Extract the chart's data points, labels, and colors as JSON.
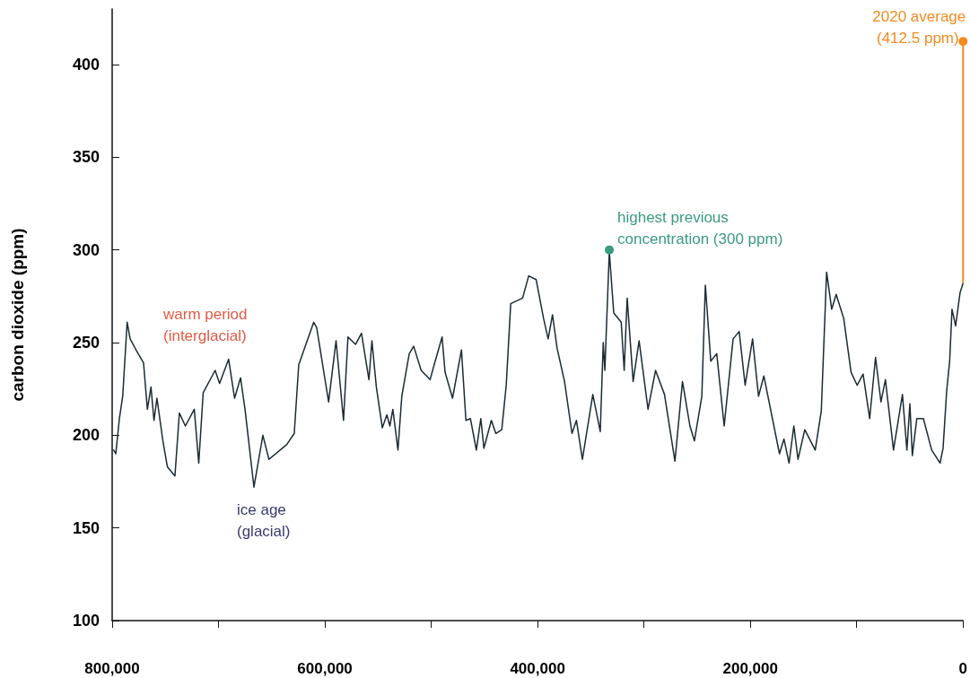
{
  "chart_data": {
    "type": "line",
    "ylabel": "carbon dioxide (ppm)",
    "xlim": [
      800000,
      0
    ],
    "ylim": [
      100,
      430
    ],
    "xticks": [
      {
        "value": 800000,
        "label": "800,000"
      },
      {
        "value": 700000,
        "label": null
      },
      {
        "value": 600000,
        "label": "600,000"
      },
      {
        "value": 500000,
        "label": null
      },
      {
        "value": 400000,
        "label": "400,000"
      },
      {
        "value": 300000,
        "label": null
      },
      {
        "value": 200000,
        "label": "200,000"
      },
      {
        "value": 100000,
        "label": null
      },
      {
        "value": 0,
        "label": "0"
      }
    ],
    "yticks": [
      100,
      150,
      200,
      250,
      300,
      350,
      400
    ],
    "grid": false,
    "marker": "none",
    "line_style": "solid",
    "annotations": [
      "warm period (interglacial)",
      "ice age (glacial)",
      {
        "text": "highest previous concentration (300 ppm)",
        "x": 332600,
        "y": 300
      },
      {
        "text": "2020 average (412.5 ppm)",
        "x": 0,
        "y": 412.5
      }
    ],
    "series": [
      {
        "color": "#1b2b33",
        "x": [
          798600,
          796600,
          793200,
          790100,
          785900,
          783100,
          777500,
          770500,
          766900,
          763500,
          760700,
          757900,
          752300,
          748100,
          741000,
          736800,
          731200,
          722800,
          718600,
          714400,
          703200,
          699000,
          690500,
          684900,
          679300,
          675100,
          666700,
          658300,
          652600,
          635800,
          628800,
          624600,
          610500,
          607700,
          596500,
          589500,
          582500,
          578300,
          571200,
          565600,
          558600,
          555800,
          551600,
          546000,
          541700,
          538900,
          536100,
          531300,
          527700,
          520700,
          516500,
          509500,
          501100,
          496800,
          489800,
          487000,
          480000,
          471600,
          467400,
          463200,
          457600,
          453400,
          450500,
          443500,
          439300,
          433700,
          429500,
          425300,
          414100,
          408400,
          401400,
          394400,
          390100,
          386000,
          381700,
          374700,
          367700,
          363500,
          357900,
          348100,
          341100,
          338300,
          336800,
          332600,
          328400,
          321400,
          318600,
          315800,
          310200,
          304600,
          296200,
          289100,
          280700,
          270900,
          263800,
          256800,
          252600,
          245600,
          242300,
          237200,
          231600,
          224600,
          216200,
          210500,
          204900,
          197900,
          192300,
          187300,
          172600,
          168400,
          163600,
          159100,
          155200,
          148800,
          139000,
          133300,
          128300,
          123500,
          119300,
          112200,
          105300,
          99600,
          94000,
          87800,
          82300,
          77200,
          73000,
          65400,
          57000,
          52800,
          50000,
          47700,
          43500,
          37300,
          29500,
          21600,
          18800,
          15400,
          12600,
          10400,
          7000,
          2800,
          0
        ],
        "values": [
          192,
          190,
          209,
          221,
          261,
          252,
          246,
          239,
          214,
          226,
          208,
          220,
          197,
          183,
          178,
          212,
          205,
          214,
          185,
          223,
          235,
          228,
          241,
          220,
          231,
          214,
          172,
          200,
          187,
          195,
          201,
          238,
          261,
          258,
          218,
          251,
          208,
          253,
          249,
          255,
          230,
          251,
          226,
          204,
          211,
          205,
          214,
          192,
          221,
          244,
          248,
          235,
          230,
          239,
          253,
          234,
          220,
          246,
          208,
          209,
          192,
          209,
          193,
          208,
          201,
          203,
          227,
          271,
          274,
          286,
          284,
          263,
          252,
          265,
          247,
          229,
          201,
          208,
          187,
          222,
          202,
          250,
          235,
          299,
          266,
          261,
          235,
          274,
          229,
          251,
          214,
          235,
          222,
          186,
          229,
          205,
          197,
          221,
          281,
          240,
          244,
          205,
          252,
          256,
          227,
          252,
          221,
          232,
          190,
          198,
          185,
          205,
          187,
          203,
          192,
          213,
          288,
          268,
          276,
          263,
          234,
          227,
          233,
          209,
          242,
          218,
          230,
          192,
          222,
          192,
          217,
          189,
          209,
          209,
          192,
          185,
          193,
          224,
          240,
          268,
          259,
          277,
          282
        ]
      }
    ]
  }
}
